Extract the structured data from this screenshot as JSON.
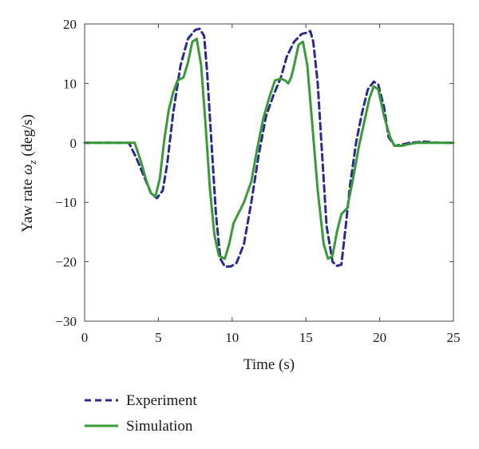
{
  "chart_data": {
    "type": "line",
    "xlabel": "Time (s)",
    "ylabel": "Yaw rate ω_z (deg/s)",
    "ylabel_main": "Yaw rate ",
    "ylabel_symbol": "ω",
    "ylabel_subscript": "z",
    "ylabel_unit": " (deg/s)",
    "xlim": [
      0,
      25
    ],
    "ylim": [
      -30,
      20
    ],
    "xticks": [
      0,
      5,
      10,
      15,
      20,
      25
    ],
    "yticks": [
      -30,
      -20,
      -10,
      0,
      10,
      20
    ],
    "xtick_labels": [
      "0",
      "5",
      "10",
      "15",
      "20",
      "25"
    ],
    "ytick_labels": [
      "−30",
      "−20",
      "−10",
      "0",
      "10",
      "20"
    ],
    "grid": false,
    "legend_position": "below",
    "series": [
      {
        "name": "Experiment",
        "color": "#2b2b8c",
        "style": "dashed",
        "x": [
          0,
          3.0,
          3.5,
          4.0,
          4.5,
          4.9,
          5.3,
          5.6,
          6.0,
          6.5,
          7.0,
          7.5,
          7.8,
          8.1,
          8.3,
          8.6,
          8.9,
          9.2,
          9.5,
          9.9,
          10.3,
          10.8,
          11.3,
          11.8,
          12.3,
          12.8,
          13.3,
          13.7,
          14.2,
          14.7,
          15.0,
          15.3,
          15.5,
          15.8,
          16.1,
          16.4,
          16.8,
          17.1,
          17.4,
          17.7,
          18.0,
          18.4,
          18.8,
          19.2,
          19.6,
          19.9,
          20.3,
          20.6,
          21.0,
          21.5,
          22.0,
          22.5,
          23.0,
          24.0,
          25.0
        ],
        "y": [
          0,
          0,
          -2.5,
          -5.5,
          -8.5,
          -9.3,
          -8.0,
          -3.5,
          5.0,
          13.0,
          17.5,
          19.0,
          19.2,
          18.0,
          12.0,
          0.0,
          -12.0,
          -19.5,
          -20.8,
          -20.8,
          -20.2,
          -17.0,
          -10.0,
          -2.0,
          4.5,
          8.0,
          11.0,
          14.5,
          17.0,
          18.3,
          18.5,
          18.8,
          17.0,
          10.0,
          -2.0,
          -14.0,
          -20.0,
          -20.7,
          -20.5,
          -14.0,
          -7.0,
          0.0,
          5.0,
          9.0,
          10.3,
          9.8,
          6.0,
          1.0,
          -0.5,
          -0.3,
          0.0,
          0.1,
          0.2,
          0.0,
          0.0
        ]
      },
      {
        "name": "Simulation",
        "color": "#3a9a3a",
        "style": "solid",
        "x": [
          0,
          3.4,
          3.8,
          4.2,
          4.5,
          4.8,
          5.1,
          5.4,
          5.7,
          6.0,
          6.3,
          6.7,
          7.0,
          7.3,
          7.6,
          7.9,
          8.2,
          8.5,
          8.8,
          9.1,
          9.5,
          9.8,
          10.1,
          10.4,
          10.8,
          11.3,
          11.7,
          12.1,
          12.5,
          12.9,
          13.3,
          13.6,
          13.8,
          14.0,
          14.2,
          14.5,
          14.8,
          15.1,
          15.4,
          15.8,
          16.2,
          16.5,
          16.8,
          17.1,
          17.4,
          17.8,
          18.2,
          18.6,
          19.0,
          19.3,
          19.6,
          19.9,
          20.3,
          20.7,
          21.0,
          21.5,
          22.0,
          22.5,
          23.5,
          25.0
        ],
        "y": [
          0,
          0,
          -3.0,
          -6.5,
          -8.5,
          -9.0,
          -6.0,
          0.5,
          5.5,
          8.5,
          10.5,
          11.0,
          13.5,
          17.0,
          17.5,
          13.0,
          3.0,
          -8.0,
          -15.5,
          -19.0,
          -19.5,
          -17.0,
          -13.5,
          -12.0,
          -10.0,
          -6.5,
          -1.0,
          4.0,
          7.5,
          10.5,
          10.8,
          10.5,
          10.0,
          11.0,
          13.0,
          16.5,
          17.0,
          13.0,
          4.0,
          -8.0,
          -17.0,
          -19.5,
          -19.0,
          -15.0,
          -12.0,
          -11.0,
          -6.0,
          -0.5,
          4.0,
          7.5,
          9.5,
          9.0,
          4.5,
          1.0,
          -0.5,
          -0.5,
          -0.2,
          0.0,
          0.0,
          0.0
        ]
      }
    ]
  }
}
